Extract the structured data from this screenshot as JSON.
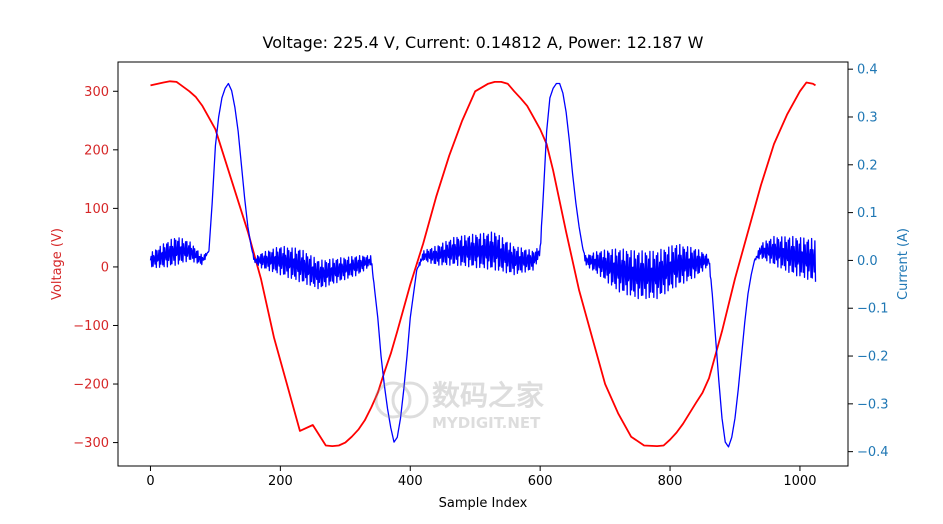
{
  "chart_data": {
    "type": "line",
    "title": "Voltage: 225.4 V, Current: 0.14812 A, Power: 12.187 W",
    "xlabel": "Sample Index",
    "ylabel_left": "Voltage (V)",
    "ylabel_right": "Current (A)",
    "xlim": [
      -50,
      1074
    ],
    "ylim_left": [
      -340,
      350
    ],
    "ylim_right": [
      -0.43,
      0.415
    ],
    "x_ticks": [
      0,
      200,
      400,
      600,
      800,
      1000
    ],
    "y_ticks_left": [
      -300,
      -200,
      -100,
      0,
      100,
      200,
      300
    ],
    "y_ticks_right": [
      -0.4,
      -0.3,
      -0.2,
      -0.1,
      0.0,
      0.1,
      0.2,
      0.3,
      0.4
    ],
    "x_tick_labels": [
      "0",
      "200",
      "400",
      "600",
      "800",
      "1000"
    ],
    "y_tick_labels_left": [
      "−300",
      "−200",
      "−100",
      "0",
      "100",
      "200",
      "300"
    ],
    "y_tick_labels_right": [
      "−0.4",
      "−0.3",
      "−0.2",
      "−0.1",
      "0.0",
      "0.1",
      "0.2",
      "0.3",
      "0.4"
    ],
    "grid": false,
    "colors": {
      "voltage": "#ff0000",
      "current": "#0000ff",
      "left_axis": "#d62728",
      "right_axis": "#1f77b4"
    },
    "series": [
      {
        "axis": "left",
        "color": "#ff0000",
        "x": [
          0,
          20,
          30,
          40,
          45,
          60,
          70,
          80,
          90,
          100,
          110,
          130,
          150,
          170,
          190,
          210,
          230,
          250,
          270,
          280,
          290,
          300,
          310,
          320,
          330,
          340,
          350,
          360,
          370,
          380,
          400,
          420,
          440,
          460,
          480,
          500,
          520,
          530,
          540,
          550,
          560,
          570,
          580,
          590,
          600,
          610,
          620,
          640,
          660,
          680,
          700,
          720,
          740,
          760,
          780,
          790,
          800,
          810,
          820,
          830,
          840,
          850,
          860,
          870,
          880,
          900,
          920,
          940,
          960,
          980,
          1000,
          1010,
          1020,
          1024
        ],
        "y": [
          310,
          315,
          317,
          316,
          312,
          300,
          290,
          275,
          255,
          235,
          200,
          130,
          60,
          -20,
          -120,
          -200,
          -280,
          -270,
          -305,
          -306,
          -305,
          -300,
          -290,
          -278,
          -262,
          -240,
          -215,
          -180,
          -148,
          -110,
          -30,
          40,
          120,
          190,
          250,
          300,
          313,
          316,
          316,
          313,
          300,
          288,
          275,
          255,
          235,
          210,
          165,
          60,
          -40,
          -120,
          -200,
          -250,
          -290,
          -305,
          -306,
          -305,
          -295,
          -283,
          -268,
          -250,
          -232,
          -215,
          -190,
          -150,
          -110,
          -20,
          60,
          140,
          210,
          260,
          300,
          315,
          313,
          310
        ]
      },
      {
        "axis": "right",
        "color": "#0000ff",
        "x": [
          0,
          20,
          40,
          60,
          80,
          90,
          95,
          100,
          105,
          110,
          115,
          120,
          125,
          130,
          135,
          140,
          145,
          150,
          155,
          160,
          170,
          200,
          230,
          260,
          290,
          320,
          340,
          345,
          350,
          355,
          360,
          365,
          370,
          375,
          380,
          385,
          390,
          395,
          400,
          410,
          420,
          440,
          470,
          500,
          530,
          560,
          590,
          600,
          605,
          610,
          615,
          620,
          625,
          630,
          635,
          640,
          645,
          650,
          655,
          660,
          665,
          670,
          690,
          720,
          750,
          780,
          810,
          840,
          860,
          865,
          870,
          875,
          880,
          885,
          890,
          895,
          900,
          905,
          910,
          915,
          920,
          925,
          930,
          940,
          960,
          990,
          1024
        ],
        "y": [
          0.0,
          0.01,
          0.02,
          0.02,
          0.0,
          0.02,
          0.12,
          0.24,
          0.3,
          0.34,
          0.36,
          0.37,
          0.355,
          0.32,
          0.27,
          0.2,
          0.13,
          0.07,
          0.03,
          0.0,
          0.0,
          0.0,
          -0.01,
          -0.03,
          -0.02,
          -0.01,
          0.0,
          -0.06,
          -0.12,
          -0.2,
          -0.26,
          -0.31,
          -0.35,
          -0.38,
          -0.37,
          -0.33,
          -0.27,
          -0.2,
          -0.12,
          -0.02,
          0.01,
          0.01,
          0.02,
          0.02,
          0.02,
          0.0,
          0.0,
          0.02,
          0.14,
          0.27,
          0.34,
          0.36,
          0.37,
          0.37,
          0.35,
          0.31,
          0.25,
          0.18,
          0.12,
          0.07,
          0.03,
          0.0,
          -0.005,
          -0.02,
          -0.03,
          -0.03,
          -0.01,
          -0.005,
          0.0,
          -0.07,
          -0.16,
          -0.25,
          -0.33,
          -0.38,
          -0.39,
          -0.37,
          -0.33,
          -0.27,
          -0.2,
          -0.13,
          -0.07,
          -0.03,
          0.0,
          0.02,
          0.02,
          0.01,
          0.0
        ],
        "ripple": [
          0.015,
          0.025,
          0.03,
          0.02,
          0.01,
          0.0,
          0.0,
          0.0,
          0.0,
          0.0,
          0.0,
          0.0,
          0.0,
          0.0,
          0.0,
          0.0,
          0.0,
          0.0,
          0.0,
          0.005,
          0.015,
          0.03,
          0.035,
          0.03,
          0.025,
          0.02,
          0.01,
          0.0,
          0.0,
          0.0,
          0.0,
          0.0,
          0.0,
          0.0,
          0.0,
          0.0,
          0.0,
          0.0,
          0.0,
          0.0,
          0.01,
          0.02,
          0.03,
          0.035,
          0.04,
          0.03,
          0.02,
          0.01,
          0.0,
          0.0,
          0.0,
          0.0,
          0.0,
          0.0,
          0.0,
          0.0,
          0.0,
          0.0,
          0.0,
          0.0,
          0.0,
          0.01,
          0.025,
          0.045,
          0.05,
          0.05,
          0.045,
          0.03,
          0.01,
          0.0,
          0.0,
          0.0,
          0.0,
          0.0,
          0.0,
          0.0,
          0.0,
          0.0,
          0.0,
          0.0,
          0.0,
          0.0,
          0.0,
          0.015,
          0.03,
          0.04,
          0.045
        ]
      }
    ]
  },
  "watermark": {
    "text": "数码之家",
    "subtext": "MYDIGIT.NET"
  }
}
